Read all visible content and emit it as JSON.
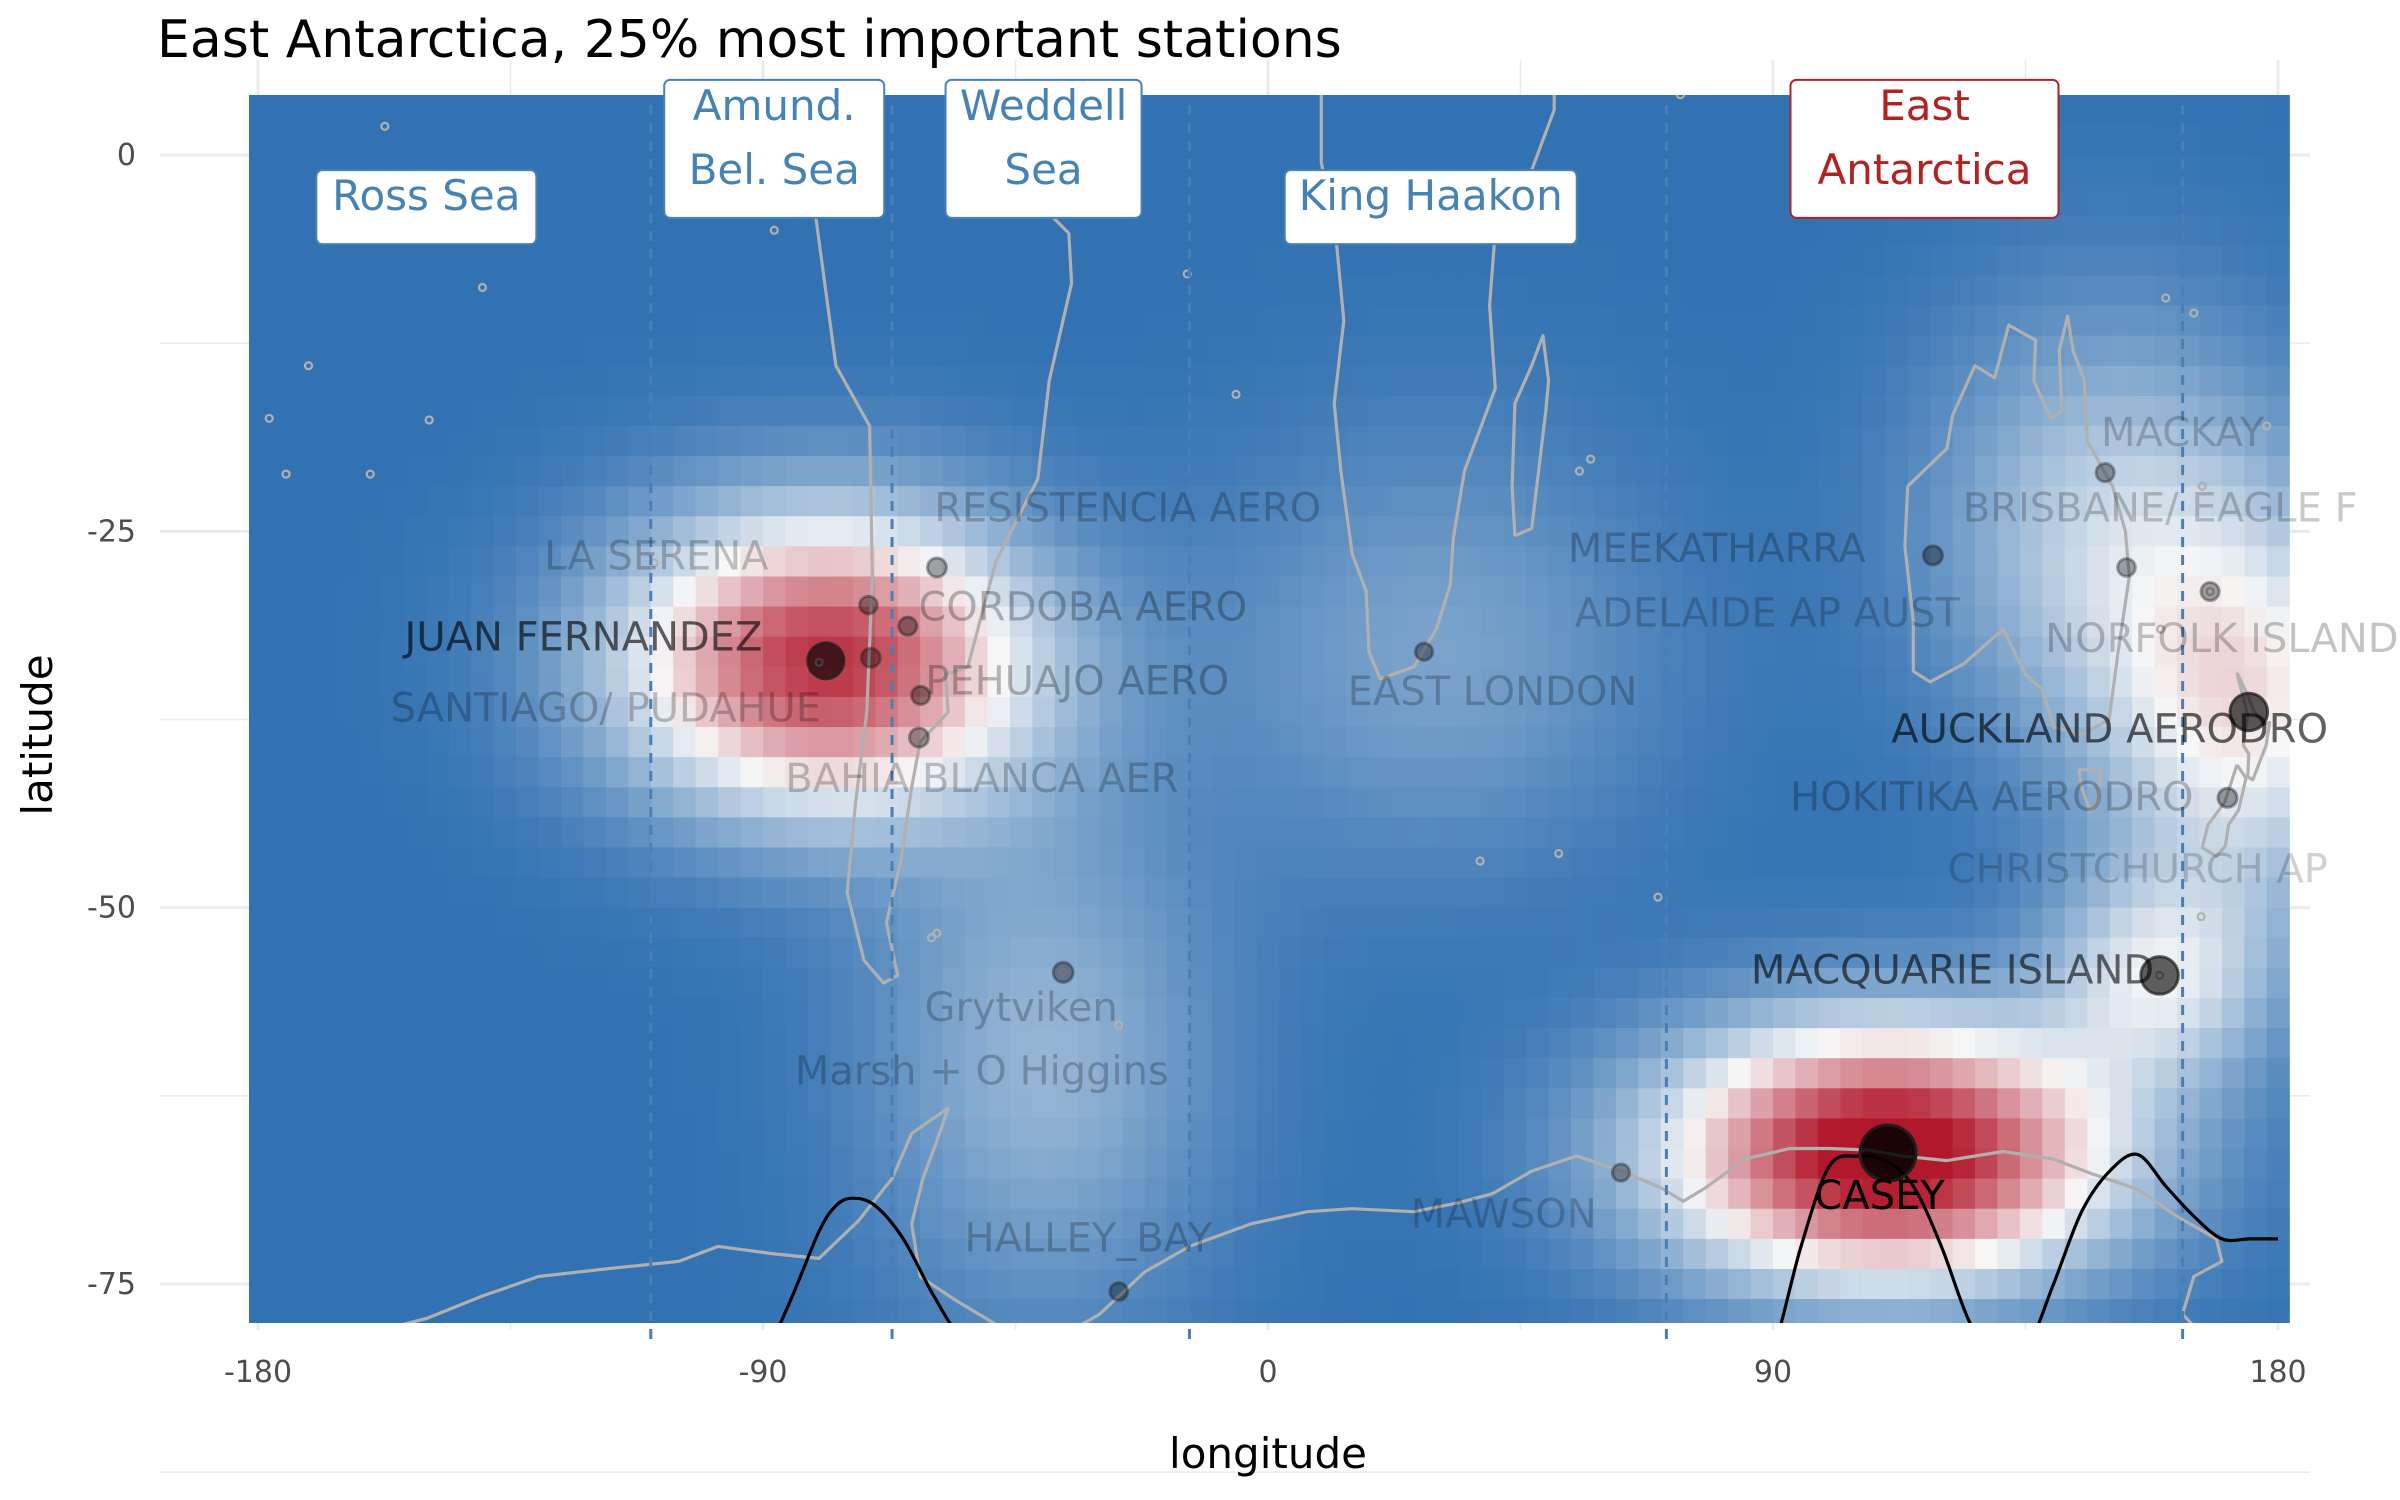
{
  "chart_data": {
    "type": "heatmap",
    "title": "East Antarctica, 25% most important stations",
    "xlabel": "longitude",
    "ylabel": "latitude",
    "xlim": [
      -180,
      180
    ],
    "ylim": [
      -90,
      5
    ],
    "x_ticks": [
      "-180",
      "-90",
      "0",
      "90",
      "180"
    ],
    "x_tick_values": [
      -180,
      -90,
      0,
      90,
      180
    ],
    "y_ticks": [
      "0",
      "-25",
      "-50",
      "-75"
    ],
    "y_tick_values": [
      0,
      -25,
      -50,
      -75
    ],
    "grid": true,
    "colors": {
      "low": "#2166ac",
      "mid": "#f7f7f7",
      "high": "#b2182b",
      "coast": "#b0b0b0",
      "divider": "#4a7fb5",
      "region_label": "#4682b4",
      "highlight_label": "#b22222",
      "curve": "#000000"
    },
    "importance_centers": [
      {
        "lon": 110.5,
        "lat": -66.3,
        "weight": 1.0,
        "sx": 28,
        "sy": 6
      },
      {
        "lon": -78.8,
        "lat": -33.6,
        "weight": 0.85,
        "sx": 26,
        "sy": 7
      },
      {
        "lon": 158.9,
        "lat": -54.5,
        "weight": 0.35,
        "sx": 14,
        "sy": 5
      },
      {
        "lon": 174.8,
        "lat": -37.0,
        "weight": 0.42,
        "sx": 18,
        "sy": 9
      },
      {
        "lon": 150,
        "lat": -25,
        "weight": 0.3,
        "sx": 22,
        "sy": 10
      },
      {
        "lon": -40,
        "lat": -60,
        "weight": 0.22,
        "sx": 22,
        "sy": 12
      },
      {
        "lon": 30,
        "lat": -33,
        "weight": 0.16,
        "sx": 28,
        "sy": 10
      }
    ],
    "regions": [
      {
        "name": "Ross Sea",
        "lon": -150,
        "lat": -3,
        "highlight": false
      },
      {
        "name": "Amund.\nBel. Sea",
        "lon": -88,
        "lat": 3,
        "highlight": false
      },
      {
        "name": "Weddell\nSea",
        "lon": -40,
        "lat": 3,
        "highlight": false
      },
      {
        "name": "King Haakon",
        "lon": 29,
        "lat": -3,
        "highlight": false
      },
      {
        "name": "East\nAntarctica",
        "lon": 117,
        "lat": 3,
        "highlight": true
      }
    ],
    "dividers": [
      -110,
      -67,
      -14,
      71,
      163
    ],
    "stations": [
      {
        "name": "CASEY",
        "lon": 110.5,
        "lat": -66.3,
        "size": 1.0,
        "dark": 1.0,
        "label_lon": 109,
        "label_lat": -69.3
      },
      {
        "name": "JUAN FERNANDEZ",
        "lon": -78.8,
        "lat": -33.6,
        "size": 0.55,
        "dark": 0.65,
        "label_lon": -122,
        "label_lat": -32.2
      },
      {
        "name": "AUCKLAND AERODRO",
        "lon": 174.8,
        "lat": -37.0,
        "size": 0.58,
        "dark": 0.65,
        "label_lon": 150,
        "label_lat": -38.3
      },
      {
        "name": "MACQUARIE ISLAND",
        "lon": 158.9,
        "lat": -54.5,
        "size": 0.58,
        "dark": 0.62,
        "label_lon": 122,
        "label_lat": -54.3
      },
      {
        "name": "CORDOBA AERO",
        "lon": -64.2,
        "lat": -31.3,
        "size": 0.14,
        "dark": 0.25,
        "label_lon": -33,
        "label_lat": -30.2
      },
      {
        "name": "PEHUAJO AERO",
        "lon": -61.9,
        "lat": -35.9,
        "size": 0.14,
        "dark": 0.25,
        "label_lon": -34,
        "label_lat": -35.1
      },
      {
        "name": "SANTIAGO/ PUDAHUE",
        "lon": -70.8,
        "lat": -33.4,
        "size": 0.16,
        "dark": 0.22,
        "label_lon": -118,
        "label_lat": -36.9
      },
      {
        "name": "LA SERENA",
        "lon": -71.2,
        "lat": -29.9,
        "size": 0.13,
        "dark": 0.2,
        "label_lon": -109,
        "label_lat": -26.8
      },
      {
        "name": "RESISTENCIA AERO",
        "lon": -59.0,
        "lat": -27.4,
        "size": 0.16,
        "dark": 0.2,
        "label_lon": -25,
        "label_lat": -23.6
      },
      {
        "name": "BAHIA BLANCA AER",
        "lon": -62.2,
        "lat": -38.7,
        "size": 0.16,
        "dark": 0.2,
        "label_lon": -51,
        "label_lat": -41.6
      },
      {
        "name": "Grytviken",
        "lon": -36.5,
        "lat": -54.3,
        "size": 0.18,
        "dark": 0.2,
        "label_lon": -44,
        "label_lat": -56.8
      },
      {
        "name": "Marsh + O Higgins",
        "lon": -58.9,
        "lat": -62.2,
        "size": 0.0,
        "dark": 0.2,
        "label_lon": -51,
        "label_lat": -61.0
      },
      {
        "name": "HALLEY_BAY",
        "lon": -26.6,
        "lat": -75.5,
        "size": 0.13,
        "dark": 0.2,
        "label_lon": -32,
        "label_lat": -72.1
      },
      {
        "name": "EAST LONDON",
        "lon": 27.8,
        "lat": -33.0,
        "size": 0.12,
        "dark": 0.2,
        "label_lon": 40,
        "label_lat": -35.8
      },
      {
        "name": "MEEKATHARRA",
        "lon": 118.5,
        "lat": -26.6,
        "size": 0.16,
        "dark": 0.22,
        "label_lon": 80,
        "label_lat": -26.3
      },
      {
        "name": "ADELAIDE AP AUST",
        "lon": 138.5,
        "lat": -34.9,
        "size": 0.0,
        "dark": 0.18,
        "label_lon": 89,
        "label_lat": -30.6
      },
      {
        "name": "MACKAY",
        "lon": 149.2,
        "lat": -21.1,
        "size": 0.14,
        "dark": 0.18,
        "label_lon": 163,
        "label_lat": -18.6
      },
      {
        "name": "BRISBANE/ EAGLE F",
        "lon": 153.0,
        "lat": -27.4,
        "size": 0.13,
        "dark": 0.18,
        "label_lon": 159,
        "label_lat": -23.6
      },
      {
        "name": "NORFOLK ISLAND",
        "lon": 167.9,
        "lat": -29.0,
        "size": 0.14,
        "dark": 0.2,
        "label_lon": 170,
        "label_lat": -32.3
      },
      {
        "name": "HOKITIKA AERODRO",
        "lon": 171.0,
        "lat": -42.7,
        "size": 0.16,
        "dark": 0.22,
        "label_lon": 129,
        "label_lat": -42.8
      },
      {
        "name": "CHRISTCHURCH AP",
        "lon": 172.5,
        "lat": -43.5,
        "size": 0.0,
        "dark": 0.12,
        "label_lon": 155,
        "label_lat": -47.6
      },
      {
        "name": "MAWSON",
        "lon": 62.9,
        "lat": -67.6,
        "size": 0.12,
        "dark": 0.18,
        "label_lon": 42,
        "label_lat": -70.5
      }
    ],
    "curve": {
      "x": [
        -180,
        -150,
        -120,
        -110,
        -100,
        -95,
        -90,
        -85,
        -80,
        -77,
        -74,
        -70,
        -65,
        -60,
        -55,
        -50,
        -45,
        -40,
        -35,
        -30,
        -25,
        -20,
        -15,
        -10,
        -5,
        0,
        5,
        10,
        15,
        20,
        25,
        30,
        35,
        40,
        45,
        50,
        55,
        60,
        65,
        70,
        75,
        80,
        85,
        90,
        95,
        100,
        105,
        110,
        115,
        120,
        125,
        130,
        135,
        140,
        145,
        150,
        155,
        160,
        165,
        170,
        175,
        180
      ],
      "y": [
        -85,
        -85,
        -85,
        -84.8,
        -84,
        -82.5,
        -80,
        -76,
        -71.5,
        -69.8,
        -69.3,
        -69.8,
        -72,
        -75.5,
        -78.5,
        -80.2,
        -80.6,
        -80.6,
        -81,
        -82,
        -83.2,
        -84.2,
        -84.8,
        -85,
        -85,
        -84.9,
        -84.5,
        -83.8,
        -83.2,
        -83,
        -83.2,
        -83.5,
        -84,
        -84.1,
        -83.8,
        -83.3,
        -83,
        -83.1,
        -83.5,
        -84,
        -84.4,
        -84.3,
        -83.4,
        -79.5,
        -72.5,
        -67.2,
        -66.5,
        -66.8,
        -68.5,
        -72.5,
        -77.5,
        -80.2,
        -79.5,
        -75,
        -70.2,
        -67.5,
        -66.4,
        -68.5,
        -70.5,
        -72,
        -72,
        -72
      ]
    },
    "land": [
      [
        [
          -81,
          12
        ],
        [
          -76,
          8
        ],
        [
          -78,
          2
        ],
        [
          -81,
          -3
        ],
        [
          -77,
          -14
        ],
        [
          -71,
          -18
        ],
        [
          -70.5,
          -28
        ],
        [
          -71.5,
          -37
        ],
        [
          -73.5,
          -43
        ],
        [
          -75,
          -49
        ],
        [
          -72,
          -53.5
        ],
        [
          -68.5,
          -55
        ],
        [
          -66,
          -54.5
        ],
        [
          -68,
          -51
        ],
        [
          -65.5,
          -47
        ],
        [
          -63.5,
          -42
        ],
        [
          -62,
          -39
        ],
        [
          -57,
          -37
        ],
        [
          -57.5,
          -34.5
        ],
        [
          -53.5,
          -34
        ],
        [
          -48.5,
          -27
        ],
        [
          -41,
          -21.5
        ],
        [
          -39,
          -15
        ],
        [
          -35,
          -8.5
        ],
        [
          -35.5,
          -5.2
        ],
        [
          -44,
          -2
        ],
        [
          -50,
          0
        ],
        [
          -52,
          4.5
        ],
        [
          -58,
          7
        ],
        [
          -62,
          10
        ],
        [
          -72,
          11.5
        ],
        [
          -81,
          12
        ]
      ],
      [
        [
          -17,
          14.5
        ],
        [
          -17,
          21
        ],
        [
          -13,
          27.5
        ],
        [
          -9.5,
          30
        ],
        [
          -6,
          35.8
        ],
        [
          3,
          36.8
        ],
        [
          10.5,
          37
        ],
        [
          11,
          34
        ],
        [
          20,
          31
        ],
        [
          32,
          31.3
        ],
        [
          34.5,
          28
        ],
        [
          39,
          21
        ],
        [
          43,
          12.5
        ],
        [
          51,
          11.5
        ],
        [
          51,
          3
        ],
        [
          47,
          -1
        ],
        [
          40.5,
          -5
        ],
        [
          39.5,
          -10
        ],
        [
          40.5,
          -15.5
        ],
        [
          35,
          -21
        ],
        [
          33,
          -25.5
        ],
        [
          32.5,
          -28.5
        ],
        [
          30,
          -31.5
        ],
        [
          26,
          -34
        ],
        [
          20,
          -34.8
        ],
        [
          18,
          -33
        ],
        [
          17.5,
          -29
        ],
        [
          15,
          -26.5
        ],
        [
          13,
          -21
        ],
        [
          11.8,
          -16.5
        ],
        [
          13.5,
          -11
        ],
        [
          12,
          -5
        ],
        [
          9.5,
          -0.5
        ],
        [
          9.5,
          4
        ],
        [
          5,
          6
        ],
        [
          -1,
          5.2
        ],
        [
          -8,
          4.8
        ],
        [
          -13,
          8
        ],
        [
          -17,
          14.5
        ]
      ],
      [
        [
          44,
          -25.3
        ],
        [
          47,
          -24.8
        ],
        [
          49.5,
          -17
        ],
        [
          50,
          -15
        ],
        [
          49,
          -12
        ],
        [
          47,
          -14
        ],
        [
          44,
          -16.5
        ],
        [
          43.5,
          -22
        ],
        [
          44,
          -25.3
        ]
      ],
      [
        [
          114,
          -22
        ],
        [
          113.5,
          -26
        ],
        [
          115,
          -31
        ],
        [
          115,
          -34.3
        ],
        [
          118,
          -35
        ],
        [
          124,
          -33.8
        ],
        [
          131,
          -31.5
        ],
        [
          135,
          -34.5
        ],
        [
          138,
          -35.5
        ],
        [
          140,
          -38
        ],
        [
          145,
          -38.5
        ],
        [
          149.9,
          -37.5
        ],
        [
          151.5,
          -33
        ],
        [
          153.5,
          -28
        ],
        [
          152.8,
          -25
        ],
        [
          150.5,
          -22
        ],
        [
          146,
          -19
        ],
        [
          145.5,
          -15
        ],
        [
          143.5,
          -13
        ],
        [
          142.5,
          -10.7
        ],
        [
          141,
          -13
        ],
        [
          141.5,
          -17
        ],
        [
          139.5,
          -17.5
        ],
        [
          136.5,
          -15
        ],
        [
          136.8,
          -12.3
        ],
        [
          132,
          -11.3
        ],
        [
          129.5,
          -14.8
        ],
        [
          126,
          -14
        ],
        [
          122,
          -17.3
        ],
        [
          121,
          -19.5
        ],
        [
          114,
          -22
        ]
      ],
      [
        [
          144.5,
          -40.8
        ],
        [
          148.3,
          -40.9
        ],
        [
          148,
          -43
        ],
        [
          146.5,
          -43.6
        ],
        [
          145,
          -42
        ],
        [
          144.5,
          -40.8
        ]
      ],
      [
        [
          172.7,
          -34.4
        ],
        [
          174.5,
          -35.8
        ],
        [
          175.8,
          -37
        ],
        [
          177.5,
          -37.8
        ],
        [
          178.5,
          -37.7
        ],
        [
          177.9,
          -39.2
        ],
        [
          175.5,
          -41.5
        ],
        [
          174.6,
          -41.3
        ],
        [
          174.8,
          -39.8
        ],
        [
          173.8,
          -39.2
        ],
        [
          174.6,
          -37.2
        ],
        [
          172.7,
          -34.4
        ]
      ],
      [
        [
          172.7,
          -40.5
        ],
        [
          174.3,
          -41.4
        ],
        [
          173,
          -43.5
        ],
        [
          171.2,
          -44.5
        ],
        [
          170.6,
          -45.9
        ],
        [
          169,
          -46.6
        ],
        [
          166.5,
          -46
        ],
        [
          167.5,
          -44.5
        ],
        [
          170.5,
          -43
        ],
        [
          172.7,
          -40.5
        ]
      ],
      [
        [
          -180,
          -84.5
        ],
        [
          -163,
          -78.5
        ],
        [
          -150,
          -77.3
        ],
        [
          -140,
          -75.8
        ],
        [
          -130,
          -74.5
        ],
        [
          -118,
          -74
        ],
        [
          -105,
          -73.5
        ],
        [
          -98,
          -72.5
        ],
        [
          -88,
          -73
        ],
        [
          -80,
          -73.3
        ],
        [
          -73,
          -70.8
        ],
        [
          -67,
          -68
        ],
        [
          -63.5,
          -65
        ],
        [
          -57,
          -63.3
        ],
        [
          -59,
          -65.5
        ],
        [
          -61.5,
          -68
        ],
        [
          -63.5,
          -71
        ],
        [
          -62,
          -74.5
        ],
        [
          -56,
          -76
        ],
        [
          -48,
          -77.8
        ],
        [
          -36,
          -78.3
        ],
        [
          -30,
          -77
        ],
        [
          -22,
          -74.2
        ],
        [
          -14,
          -72.5
        ],
        [
          -3,
          -71
        ],
        [
          7,
          -70.2
        ],
        [
          15,
          -70
        ],
        [
          26,
          -70.2
        ],
        [
          34,
          -69.6
        ],
        [
          40,
          -69
        ],
        [
          47,
          -67.5
        ],
        [
          55,
          -66.5
        ],
        [
          63,
          -67.5
        ],
        [
          70,
          -68.6
        ],
        [
          74,
          -69.5
        ],
        [
          78,
          -68.6
        ],
        [
          85,
          -66.7
        ],
        [
          93,
          -66
        ],
        [
          100,
          -66
        ],
        [
          107,
          -66.1
        ],
        [
          113,
          -66.5
        ],
        [
          121,
          -66.8
        ],
        [
          131,
          -66.2
        ],
        [
          140,
          -66.7
        ],
        [
          147,
          -67.7
        ],
        [
          155,
          -68.7
        ],
        [
          162,
          -70.5
        ],
        [
          169,
          -72
        ],
        [
          170,
          -73.5
        ],
        [
          165,
          -74.5
        ],
        [
          163,
          -77
        ],
        [
          166,
          -78.2
        ],
        [
          170,
          -78.5
        ],
        [
          180,
          -84.5
        ]
      ]
    ],
    "islands": [
      [
        -36.5,
        -54.3
      ],
      [
        -26.6,
        -57.8
      ],
      [
        -59,
        -51.7
      ],
      [
        -60,
        -52
      ],
      [
        69.5,
        -49.3
      ],
      [
        51.8,
        -46.4
      ],
      [
        37.8,
        -46.9
      ],
      [
        158.9,
        -54.5
      ],
      [
        166.3,
        -50.6
      ],
      [
        -62,
        -80
      ],
      [
        -5.7,
        -15.9
      ],
      [
        -14.4,
        -7.9
      ],
      [
        -140,
        -8.8
      ],
      [
        -149.5,
        -17.6
      ],
      [
        -160,
        -21.2
      ],
      [
        -175,
        -21.2
      ],
      [
        -178,
        -17.5
      ],
      [
        -171,
        -14
      ],
      [
        -157.4,
        1.9
      ],
      [
        -109.4,
        -27.1
      ],
      [
        -80,
        -33.7
      ],
      [
        -88,
        -5
      ],
      [
        55.5,
        -21
      ],
      [
        57.5,
        -20.2
      ],
      [
        73.5,
        4
      ],
      [
        80.5,
        7.5
      ],
      [
        166.5,
        -22
      ],
      [
        167.9,
        -29
      ],
      [
        159.1,
        -31.5
      ],
      [
        178,
        -18
      ],
      [
        165,
        -10.5
      ],
      [
        160,
        -9.5
      ]
    ]
  }
}
